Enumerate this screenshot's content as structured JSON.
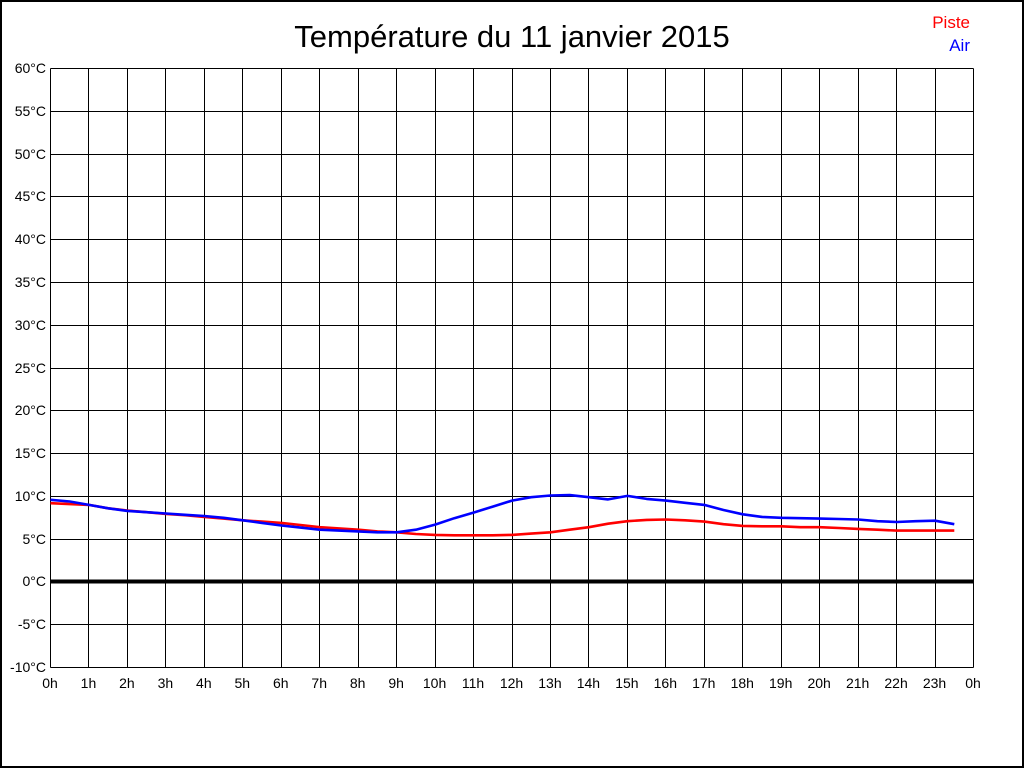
{
  "chart_data": {
    "type": "line",
    "title": "Température du 11 janvier 2015",
    "xlabel": "",
    "ylabel": "",
    "xlim": [
      0,
      24
    ],
    "ylim": [
      -10,
      60
    ],
    "y_tick_step": 5,
    "grid": true,
    "zero_line_bold": true,
    "legend_position": "top-right",
    "x_tick_labels": [
      "0h",
      "1h",
      "2h",
      "3h",
      "4h",
      "5h",
      "6h",
      "7h",
      "8h",
      "9h",
      "10h",
      "11h",
      "12h",
      "13h",
      "14h",
      "15h",
      "16h",
      "17h",
      "18h",
      "19h",
      "20h",
      "21h",
      "22h",
      "23h",
      "0h"
    ],
    "y_tick_labels": [
      "60°C",
      "55°C",
      "50°C",
      "45°C",
      "40°C",
      "35°C",
      "30°C",
      "25°C",
      "20°C",
      "15°C",
      "10°C",
      "5°C",
      "0°C",
      "-5°C",
      "-10°C"
    ],
    "x": [
      0,
      0.5,
      1,
      1.5,
      2,
      2.5,
      3,
      3.5,
      4,
      4.5,
      5,
      5.5,
      6,
      6.5,
      7,
      7.5,
      8,
      8.5,
      9,
      9.5,
      10,
      10.5,
      11,
      11.5,
      12,
      12.5,
      13,
      13.5,
      14,
      14.5,
      15,
      15.5,
      16,
      16.5,
      17,
      17.5,
      18,
      18.5,
      19,
      19.5,
      20,
      20.5,
      21,
      21.5,
      22,
      22.5,
      23,
      23.5
    ],
    "series": [
      {
        "name": "Piste",
        "color": "#ff0000",
        "values": [
          9.2,
          9.1,
          9.0,
          8.6,
          8.35,
          8.15,
          7.95,
          7.8,
          7.6,
          7.4,
          7.2,
          7.05,
          6.9,
          6.65,
          6.4,
          6.25,
          6.1,
          5.9,
          5.8,
          5.6,
          5.5,
          5.45,
          5.45,
          5.45,
          5.5,
          5.65,
          5.8,
          6.1,
          6.4,
          6.8,
          7.1,
          7.25,
          7.3,
          7.2,
          7.05,
          6.75,
          6.55,
          6.5,
          6.5,
          6.4,
          6.4,
          6.3,
          6.2,
          6.1,
          6.0,
          6.0,
          6.0,
          6.0
        ]
      },
      {
        "name": "Air",
        "color": "#0000ff",
        "values": [
          9.6,
          9.4,
          9.0,
          8.6,
          8.3,
          8.15,
          8.0,
          7.85,
          7.7,
          7.5,
          7.2,
          6.9,
          6.6,
          6.35,
          6.1,
          6.0,
          5.9,
          5.8,
          5.8,
          6.1,
          6.7,
          7.45,
          8.1,
          8.8,
          9.5,
          9.9,
          10.1,
          10.15,
          9.9,
          9.65,
          10.05,
          9.7,
          9.5,
          9.25,
          9.0,
          8.4,
          7.9,
          7.6,
          7.5,
          7.45,
          7.4,
          7.35,
          7.3,
          7.1,
          7.0,
          7.1,
          7.15,
          6.75
        ]
      }
    ]
  },
  "axis_color": "#000000",
  "grid_color": "#000000"
}
